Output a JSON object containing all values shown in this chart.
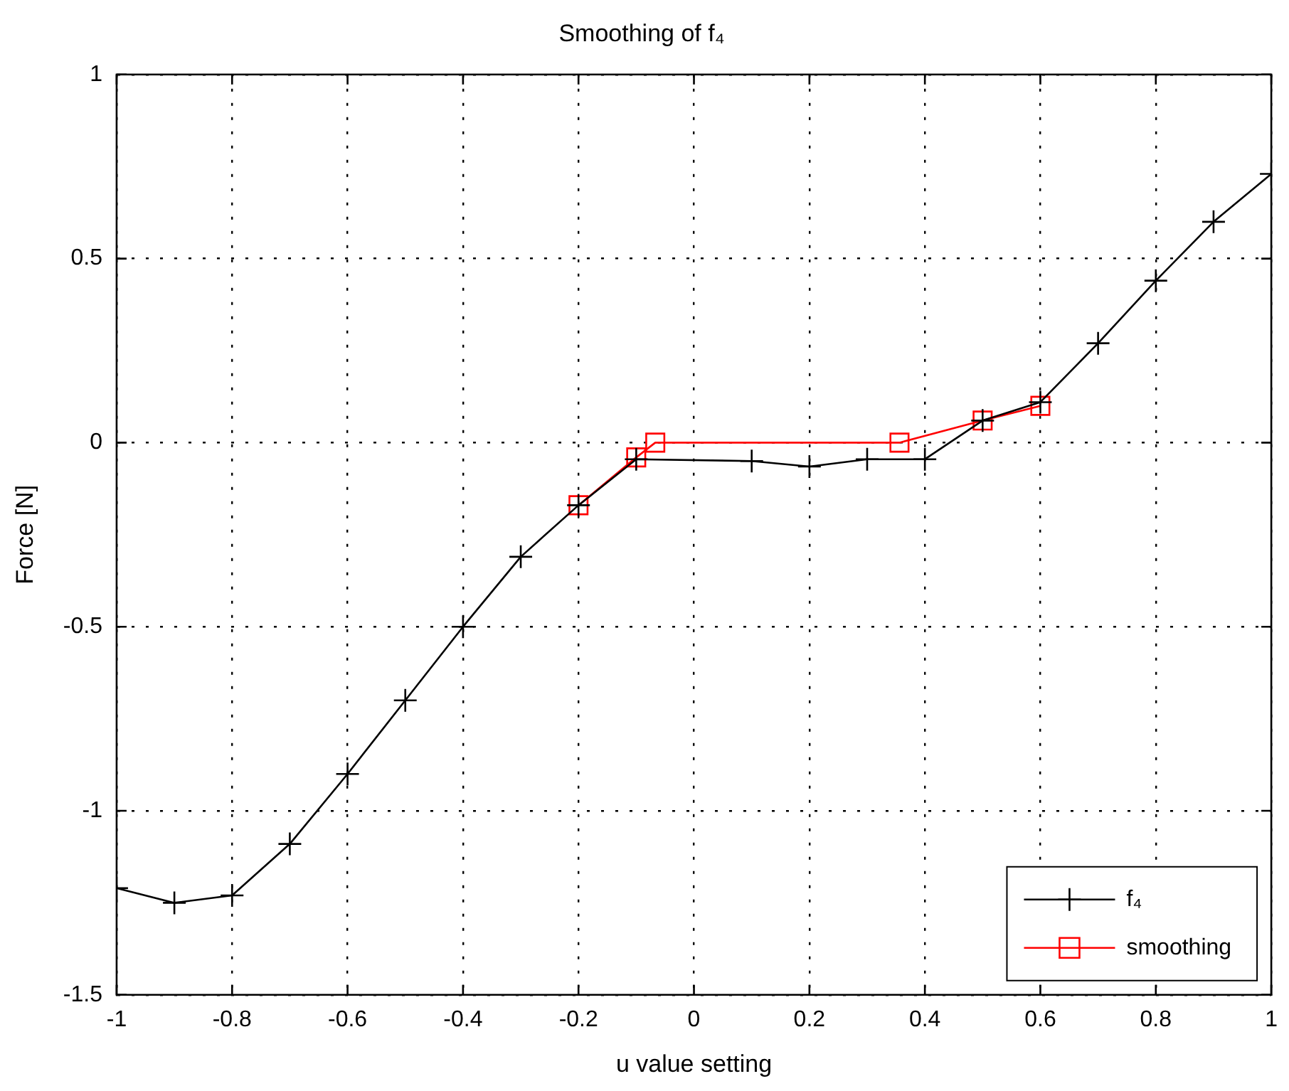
{
  "chart_data": {
    "type": "line",
    "title": "Smoothing of f₄",
    "xlabel": "u value setting",
    "ylabel": "Force [N]",
    "xlim": [
      -1,
      1
    ],
    "xticks": [
      -1,
      -0.8,
      -0.6,
      -0.4,
      -0.2,
      0,
      0.2,
      0.4,
      0.6,
      0.8,
      1
    ],
    "ylim": [
      -1.5,
      1
    ],
    "yticks": [
      -1.5,
      -1,
      -0.5,
      0,
      0.5,
      1
    ],
    "grid": true,
    "legend": "bottom right",
    "line_style": "solid",
    "series": [
      {
        "name": "f₄",
        "color": "#000000",
        "marker": "cross",
        "x": [
          -1,
          -0.9,
          -0.8,
          -0.7,
          -0.6,
          -0.5,
          -0.4,
          -0.3,
          -0.2,
          -0.1,
          0.1,
          0.2,
          0.3,
          0.4,
          0.5,
          0.6,
          0.7,
          0.8,
          0.9,
          1
        ],
        "values": [
          -1.21,
          -1.25,
          -1.23,
          -1.09,
          -0.9,
          -0.7,
          -0.5,
          -0.31,
          -0.17,
          -0.045,
          -0.05,
          -0.065,
          -0.045,
          -0.045,
          0.06,
          0.11,
          0.27,
          0.44,
          0.6,
          0.73
        ]
      },
      {
        "name": "smoothing",
        "color": "#ff0000",
        "marker": "square",
        "x": [
          -0.2,
          -0.1,
          -0.067,
          0.356,
          0.5,
          0.6
        ],
        "values": [
          -0.17,
          -0.04,
          0,
          0,
          0.06,
          0.1
        ]
      }
    ]
  }
}
